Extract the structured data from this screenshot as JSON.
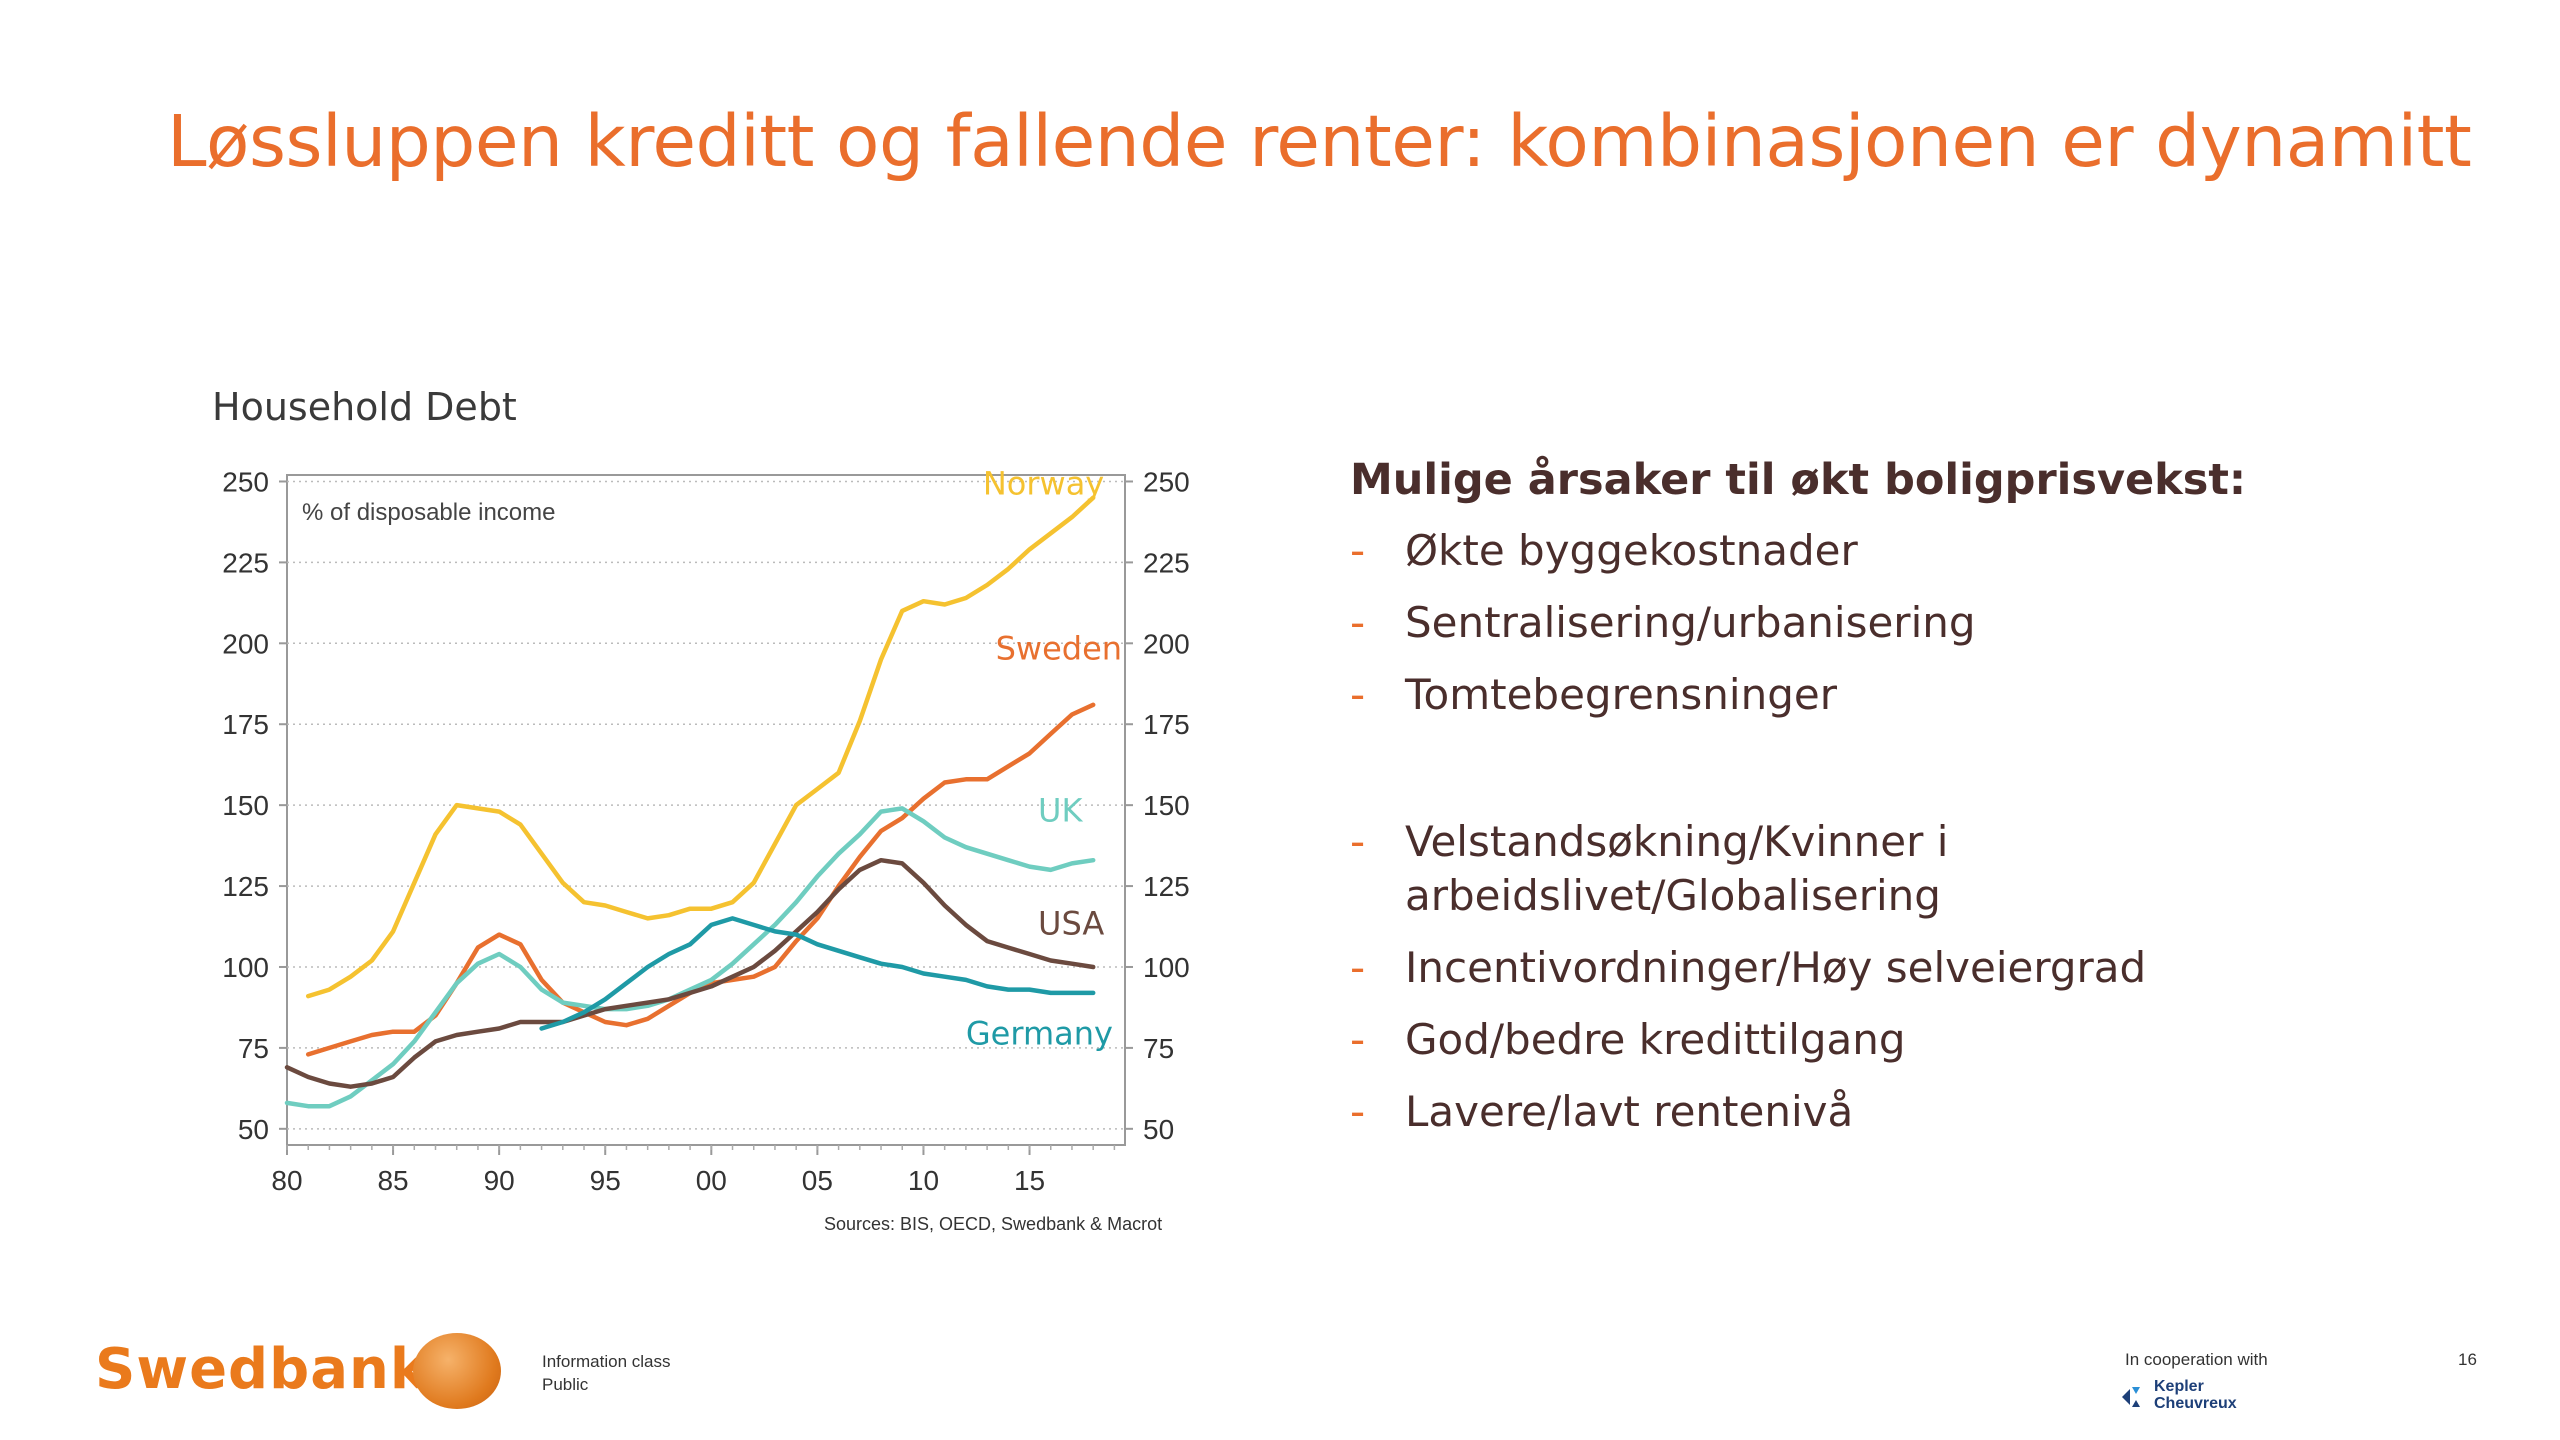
{
  "slide": {
    "title": "Løssluppen kreditt og fallende renter: kombinasjonen er dynamitt",
    "chart_heading": "Household Debt",
    "causes_heading": "Mulige årsaker til økt boligprisvekst:",
    "bullets_a": [
      "Økte byggekostnader",
      "Sentralisering/urbanisering",
      "Tomtebegrensninger"
    ],
    "bullets_b": [
      "Velstandsøkning/Kvinner i arbeidslivet/Globalisering",
      "Incentivordninger/Høy selveiergrad",
      "God/bedre kredittilgang",
      "Lavere/lavt rentenivå"
    ],
    "bullet_dash": "-"
  },
  "footer": {
    "logo_text": "Swedbank",
    "info_class_label": "Information class",
    "info_class_value": "Public",
    "cooperation": "In cooperation with",
    "partner_line1": "Kepler",
    "partner_line2": "Cheuvreux",
    "page_number": "16"
  },
  "colors": {
    "title": "#ea6e2c",
    "norway": "#f5c230",
    "sweden": "#e8702f",
    "uk": "#6fcdc0",
    "usa": "#6b4a3f",
    "germany": "#1f9aa6",
    "text_dark": "#4a2e2c"
  },
  "chart_data": {
    "type": "line",
    "unit_label": "% of disposable income",
    "source": "Sources: BIS, OECD, Swedbank & Macrot",
    "x_ticks": [
      "80",
      "85",
      "90",
      "95",
      "00",
      "05",
      "10",
      "15"
    ],
    "x_tick_years": [
      1980,
      1985,
      1990,
      1995,
      2000,
      2005,
      2010,
      2015
    ],
    "xlim": [
      1980,
      2019.5
    ],
    "ylim": [
      45,
      252
    ],
    "y_ticks": [
      "50",
      "75",
      "100",
      "125",
      "150",
      "175",
      "200",
      "225",
      "250"
    ],
    "y_tick_values": [
      50,
      75,
      100,
      125,
      150,
      175,
      200,
      225,
      250
    ],
    "grid": true,
    "series": [
      {
        "name": "Norway",
        "color_key": "norway",
        "label_anchor": [
          2012.8,
          246
        ],
        "points": [
          [
            1981,
            91
          ],
          [
            1982,
            93
          ],
          [
            1983,
            97
          ],
          [
            1984,
            102
          ],
          [
            1985,
            111
          ],
          [
            1986,
            126
          ],
          [
            1987,
            141
          ],
          [
            1988,
            150
          ],
          [
            1989,
            149
          ],
          [
            1990,
            148
          ],
          [
            1991,
            144
          ],
          [
            1992,
            135
          ],
          [
            1993,
            126
          ],
          [
            1994,
            120
          ],
          [
            1995,
            119
          ],
          [
            1996,
            117
          ],
          [
            1997,
            115
          ],
          [
            1998,
            116
          ],
          [
            1999,
            118
          ],
          [
            2000,
            118
          ],
          [
            2001,
            120
          ],
          [
            2002,
            126
          ],
          [
            2003,
            138
          ],
          [
            2004,
            150
          ],
          [
            2005,
            155
          ],
          [
            2006,
            160
          ],
          [
            2007,
            176
          ],
          [
            2008,
            195
          ],
          [
            2009,
            210
          ],
          [
            2010,
            213
          ],
          [
            2011,
            212
          ],
          [
            2012,
            214
          ],
          [
            2013,
            218
          ],
          [
            2014,
            223
          ],
          [
            2015,
            229
          ],
          [
            2016,
            234
          ],
          [
            2017,
            239
          ],
          [
            2018,
            245
          ]
        ]
      },
      {
        "name": "Sweden",
        "color_key": "sweden",
        "label_anchor": [
          2013.4,
          195
        ],
        "points": [
          [
            1981,
            73
          ],
          [
            1982,
            75
          ],
          [
            1983,
            77
          ],
          [
            1984,
            79
          ],
          [
            1985,
            80
          ],
          [
            1986,
            80
          ],
          [
            1987,
            85
          ],
          [
            1988,
            95
          ],
          [
            1989,
            106
          ],
          [
            1990,
            110
          ],
          [
            1991,
            107
          ],
          [
            1992,
            96
          ],
          [
            1993,
            89
          ],
          [
            1994,
            86
          ],
          [
            1995,
            83
          ],
          [
            1996,
            82
          ],
          [
            1997,
            84
          ],
          [
            1998,
            88
          ],
          [
            1999,
            92
          ],
          [
            2000,
            95
          ],
          [
            2001,
            96
          ],
          [
            2002,
            97
          ],
          [
            2003,
            100
          ],
          [
            2004,
            108
          ],
          [
            2005,
            115
          ],
          [
            2006,
            125
          ],
          [
            2007,
            134
          ],
          [
            2008,
            142
          ],
          [
            2009,
            146
          ],
          [
            2010,
            152
          ],
          [
            2011,
            157
          ],
          [
            2012,
            158
          ],
          [
            2013,
            158
          ],
          [
            2014,
            162
          ],
          [
            2015,
            166
          ],
          [
            2016,
            172
          ],
          [
            2017,
            178
          ],
          [
            2018,
            181
          ]
        ]
      },
      {
        "name": "UK",
        "color_key": "uk",
        "label_anchor": [
          2015.4,
          145
        ],
        "points": [
          [
            1980,
            58
          ],
          [
            1981,
            57
          ],
          [
            1982,
            57
          ],
          [
            1983,
            60
          ],
          [
            1984,
            65
          ],
          [
            1985,
            70
          ],
          [
            1986,
            77
          ],
          [
            1987,
            86
          ],
          [
            1988,
            95
          ],
          [
            1989,
            101
          ],
          [
            1990,
            104
          ],
          [
            1991,
            100
          ],
          [
            1992,
            93
          ],
          [
            1993,
            89
          ],
          [
            1994,
            88
          ],
          [
            1995,
            87
          ],
          [
            1996,
            87
          ],
          [
            1997,
            88
          ],
          [
            1998,
            90
          ],
          [
            1999,
            93
          ],
          [
            2000,
            96
          ],
          [
            2001,
            101
          ],
          [
            2002,
            107
          ],
          [
            2003,
            113
          ],
          [
            2004,
            120
          ],
          [
            2005,
            128
          ],
          [
            2006,
            135
          ],
          [
            2007,
            141
          ],
          [
            2008,
            148
          ],
          [
            2009,
            149
          ],
          [
            2010,
            145
          ],
          [
            2011,
            140
          ],
          [
            2012,
            137
          ],
          [
            2013,
            135
          ],
          [
            2014,
            133
          ],
          [
            2015,
            131
          ],
          [
            2016,
            130
          ],
          [
            2017,
            132
          ],
          [
            2018,
            133
          ]
        ]
      },
      {
        "name": "USA",
        "color_key": "usa",
        "label_anchor": [
          2015.4,
          110
        ],
        "points": [
          [
            1980,
            69
          ],
          [
            1981,
            66
          ],
          [
            1982,
            64
          ],
          [
            1983,
            63
          ],
          [
            1984,
            64
          ],
          [
            1985,
            66
          ],
          [
            1986,
            72
          ],
          [
            1987,
            77
          ],
          [
            1988,
            79
          ],
          [
            1989,
            80
          ],
          [
            1990,
            81
          ],
          [
            1991,
            83
          ],
          [
            1992,
            83
          ],
          [
            1993,
            83
          ],
          [
            1994,
            85
          ],
          [
            1995,
            87
          ],
          [
            1996,
            88
          ],
          [
            1997,
            89
          ],
          [
            1998,
            90
          ],
          [
            1999,
            92
          ],
          [
            2000,
            94
          ],
          [
            2001,
            97
          ],
          [
            2002,
            100
          ],
          [
            2003,
            105
          ],
          [
            2004,
            111
          ],
          [
            2005,
            117
          ],
          [
            2006,
            124
          ],
          [
            2007,
            130
          ],
          [
            2008,
            133
          ],
          [
            2009,
            132
          ],
          [
            2010,
            126
          ],
          [
            2011,
            119
          ],
          [
            2012,
            113
          ],
          [
            2013,
            108
          ],
          [
            2014,
            106
          ],
          [
            2015,
            104
          ],
          [
            2016,
            102
          ],
          [
            2017,
            101
          ],
          [
            2018,
            100
          ]
        ]
      },
      {
        "name": "Germany",
        "color_key": "germany",
        "label_anchor": [
          2012.0,
          76
        ],
        "points": [
          [
            1992,
            81
          ],
          [
            1993,
            83
          ],
          [
            1994,
            86
          ],
          [
            1995,
            90
          ],
          [
            1996,
            95
          ],
          [
            1997,
            100
          ],
          [
            1998,
            104
          ],
          [
            1999,
            107
          ],
          [
            2000,
            113
          ],
          [
            2001,
            115
          ],
          [
            2002,
            113
          ],
          [
            2003,
            111
          ],
          [
            2004,
            110
          ],
          [
            2005,
            107
          ],
          [
            2006,
            105
          ],
          [
            2007,
            103
          ],
          [
            2008,
            101
          ],
          [
            2009,
            100
          ],
          [
            2010,
            98
          ],
          [
            2011,
            97
          ],
          [
            2012,
            96
          ],
          [
            2013,
            94
          ],
          [
            2014,
            93
          ],
          [
            2015,
            93
          ],
          [
            2016,
            92
          ],
          [
            2017,
            92
          ],
          [
            2018,
            92
          ]
        ]
      }
    ]
  }
}
